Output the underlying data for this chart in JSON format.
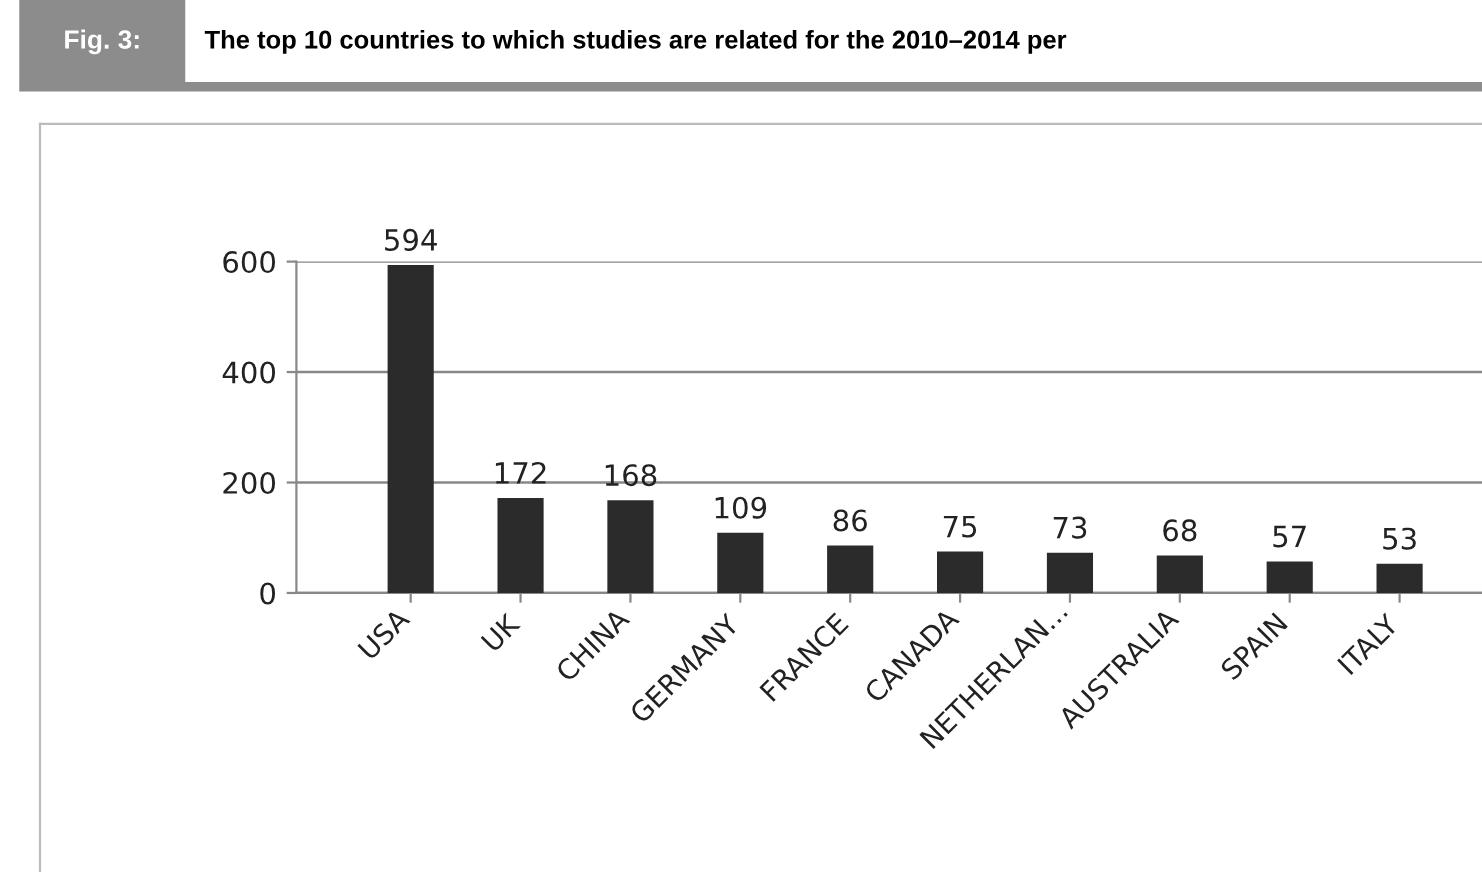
{
  "chart_data": {
    "type": "bar",
    "title": "Fig. 3:",
    "subtitle": "The top 10 countries to which studies are related for the 2010–2014 per",
    "categories": [
      "USA",
      "UK",
      "CHINA",
      "GERMANY",
      "FRANCE",
      "CANADA",
      "NETHERLAN...",
      "AUSTRALIA",
      "SPAIN",
      "ITALY"
    ],
    "values": [
      594,
      172,
      168,
      109,
      86,
      75,
      73,
      68,
      57,
      53
    ],
    "color": "#2b2b2b",
    "ylim": [
      0,
      600
    ],
    "yticks": [
      0,
      200,
      400,
      600
    ],
    "grid": "y",
    "data_labels": true
  }
}
